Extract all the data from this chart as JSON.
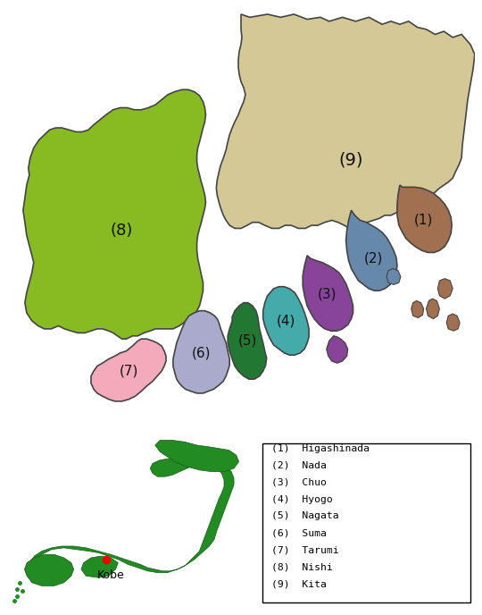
{
  "colors": {
    "1": "#A07050",
    "2": "#6688AA",
    "3": "#884499",
    "4": "#44AAAA",
    "5": "#227733",
    "6": "#AAAACC",
    "7": "#F4AABB",
    "8": "#88BB22",
    "9": "#D4C896"
  },
  "border_color": "#444444",
  "map_bg": "#FFFFFF",
  "japan_bg": "#B8D8E8",
  "japan_land": "#228B22",
  "kobe_dot": "#EE0000",
  "legend_entries": [
    "(1)  Higashinada",
    "(2)  Nada",
    "(3)  Chuo",
    "(4)  Hyogo",
    "(5)  Nagata",
    "(6)  Suma",
    "(7)  Tarumi",
    "(8)  Nishi",
    "(9)  Kita"
  ]
}
